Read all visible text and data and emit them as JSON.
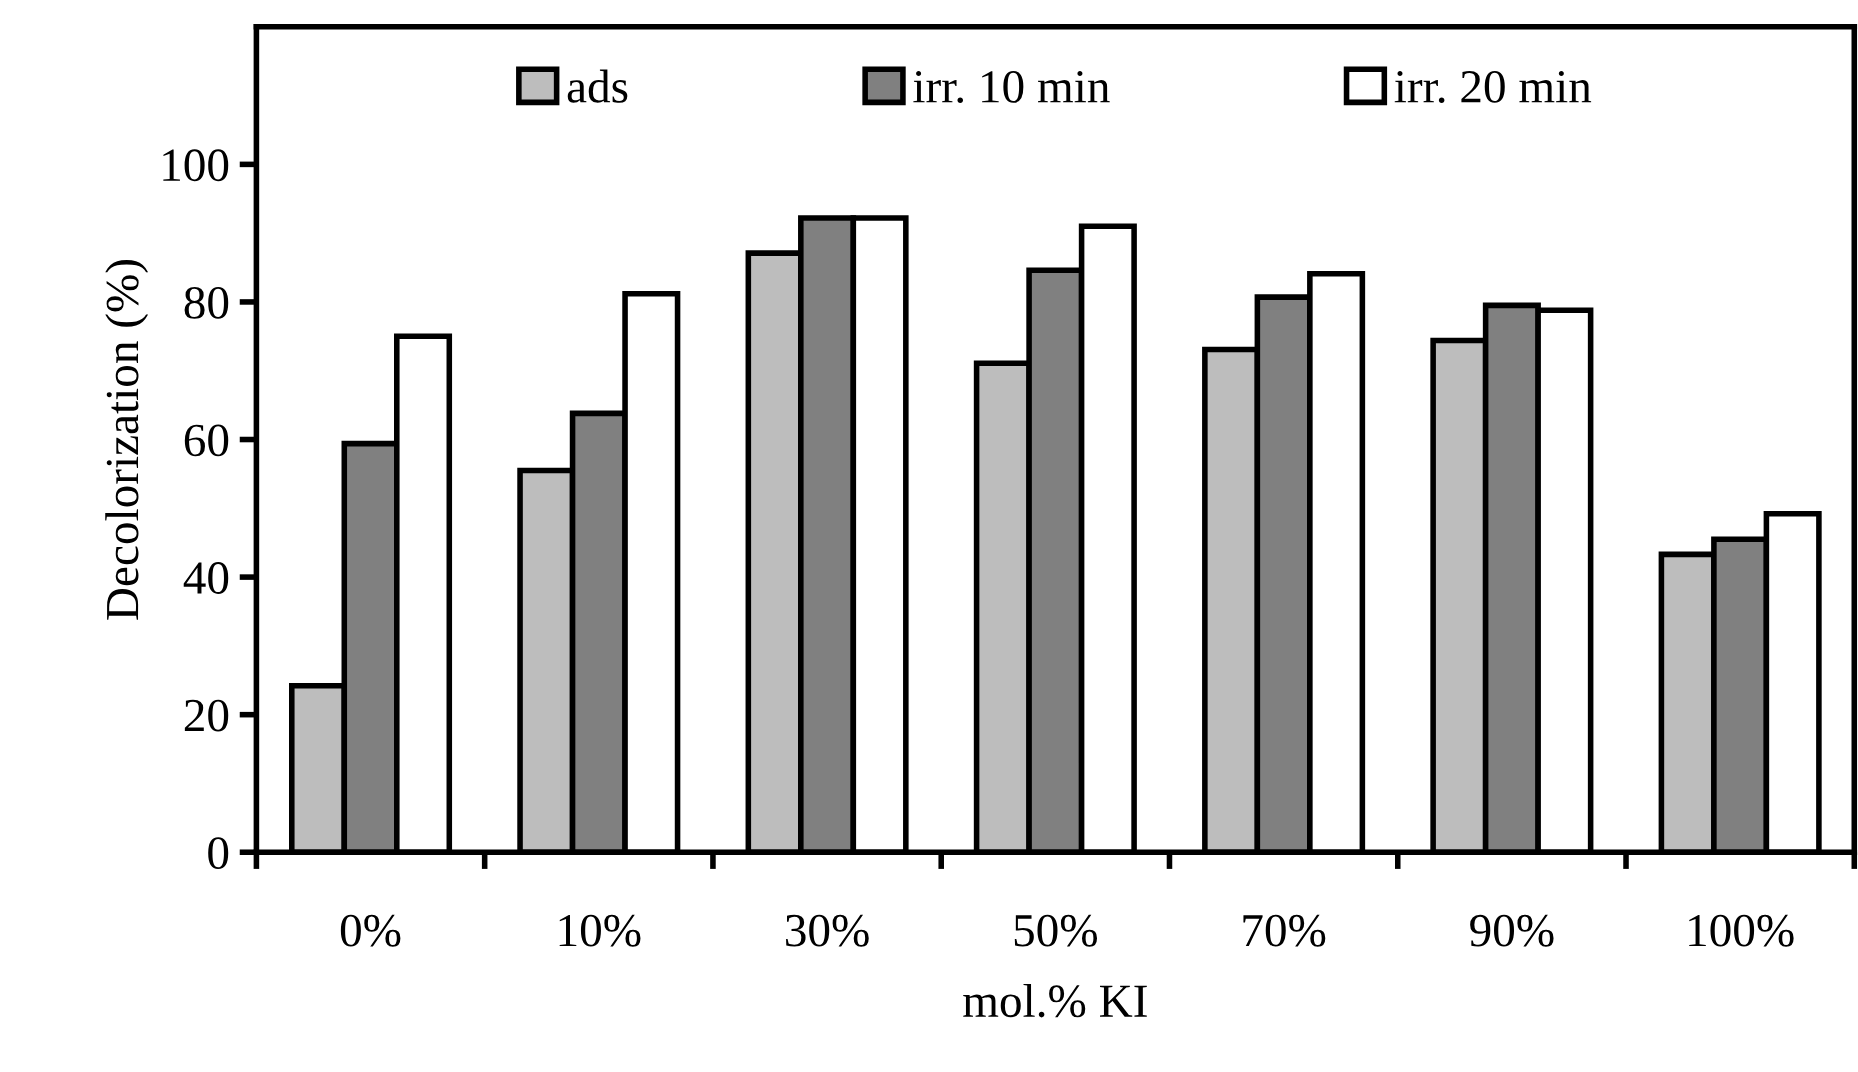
{
  "chart_data": {
    "type": "bar",
    "xlabel": "mol.% KI",
    "ylabel": "Decolorization (%)",
    "categories": [
      "0%",
      "10%",
      "30%",
      "50%",
      "70%",
      "90%",
      "100%"
    ],
    "series": [
      {
        "name": "ads",
        "color": "#bdbdbd",
        "values": [
          24.2,
          55.5,
          87.1,
          71.1,
          73.1,
          74.4,
          43.3
        ]
      },
      {
        "name": "irr. 10 min",
        "color": "#808080",
        "values": [
          59.4,
          63.8,
          92.2,
          84.6,
          80.7,
          79.5,
          45.5
        ]
      },
      {
        "name": "irr. 20 min",
        "color": "#ffffff",
        "values": [
          75.0,
          81.2,
          92.2,
          91.0,
          84.1,
          78.8,
          49.2
        ]
      }
    ],
    "ylim": [
      0,
      120
    ],
    "yticks": [
      0,
      20,
      40,
      60,
      80,
      100
    ],
    "grid": false,
    "legend": "top"
  }
}
